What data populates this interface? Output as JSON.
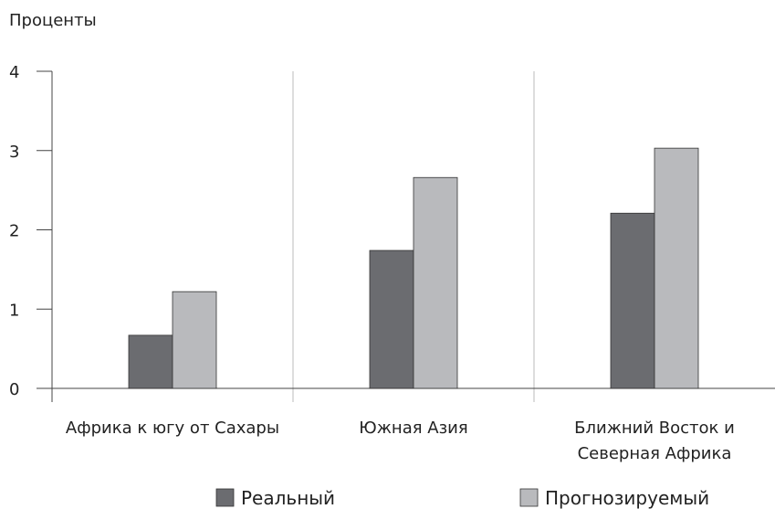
{
  "chart_data": {
    "type": "bar",
    "y_axis_label": "Проценты",
    "categories": [
      "Африка к югу от Сахары",
      "Южная Азия",
      "Ближний Восток и\nСеверная Африка"
    ],
    "series": [
      {
        "name": "Реальный",
        "color": "#6b6c70",
        "values": [
          0.67,
          1.74,
          2.21
        ]
      },
      {
        "name": "Прогнозируемый",
        "color": "#b9babd",
        "values": [
          1.22,
          2.66,
          3.03
        ]
      }
    ],
    "ylim": [
      0,
      4
    ],
    "yticks": [
      0,
      1,
      2,
      3,
      4
    ],
    "grid": true
  }
}
